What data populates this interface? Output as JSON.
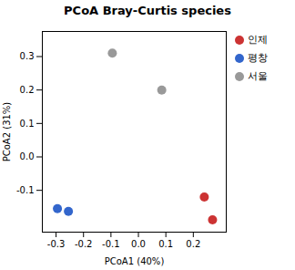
{
  "chart_data": {
    "type": "scatter",
    "title": "PCoA Bray-Curtis species",
    "xlabel": "PCoA1 (40%)",
    "ylabel": "PCoA2 (31%)",
    "xlim": [
      -0.35,
      0.32
    ],
    "ylim": [
      -0.225,
      0.375
    ],
    "xticks": [
      -0.3,
      -0.2,
      -0.1,
      {
        "value": 0.0,
        "label": "0.0"
      },
      0.1,
      0.2
    ],
    "yticks": [
      -0.1,
      {
        "value": 0.0,
        "label": "0.0"
      },
      0.1,
      0.2,
      0.3
    ],
    "series": [
      {
        "name": "인제",
        "color": "#CC3333",
        "x": [
          0.24,
          0.27
        ],
        "values": [
          -0.12,
          -0.188
        ]
      },
      {
        "name": "평창",
        "color": "#3366CC",
        "x": [
          -0.295,
          -0.255
        ],
        "values": [
          -0.155,
          -0.163
        ]
      },
      {
        "name": "서울",
        "color": "#999999",
        "x": [
          -0.095,
          0.085
        ],
        "values": [
          0.31,
          0.2
        ]
      }
    ],
    "grid": false,
    "legend": "right"
  }
}
